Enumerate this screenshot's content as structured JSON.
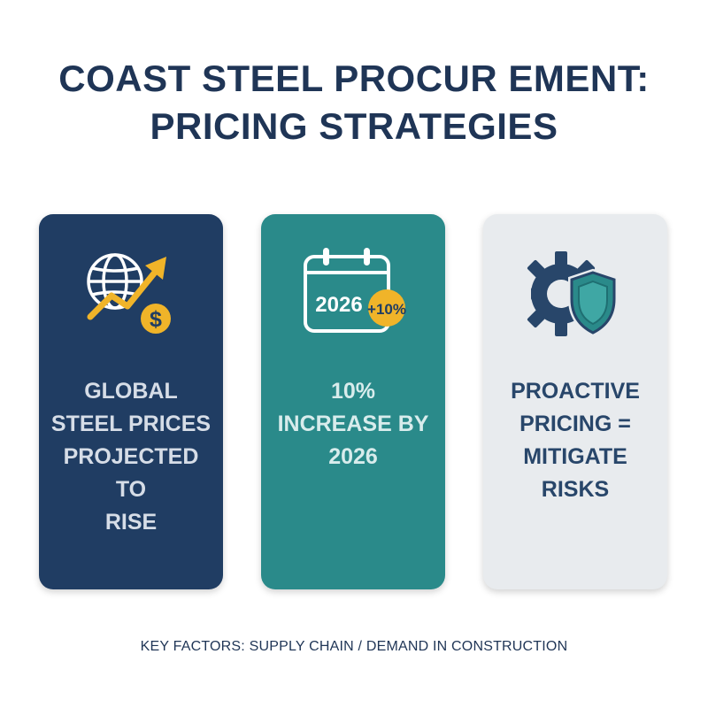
{
  "title": {
    "line1": "COAST STEEL PROCUR EMENT:",
    "line2": "PRICING STRATEGIES"
  },
  "cards": [
    {
      "icon": "globe-trend-dollar-icon",
      "lines": [
        "GLOBAL",
        "STEEL PRICES",
        "PROJECTED TO",
        "RISE"
      ],
      "icon_text": "$"
    },
    {
      "icon": "calendar-increase-icon",
      "lines": [
        "10%",
        "INCREASE BY",
        "2026"
      ],
      "icon_text": "2026",
      "badge_text": "+10%"
    },
    {
      "icon": "gear-shield-icon",
      "lines": [
        "PROACTIVE",
        "PRICING =",
        "MITIGATE RISKS"
      ]
    }
  ],
  "footer": "KEY FACTORS: SUPPLY CHAIN / DEMAND IN CONSTRUCTION",
  "colors": {
    "navy": "#203d63",
    "teal": "#2a8a8a",
    "light_gray": "#e8ebee",
    "gold": "#f0b429",
    "title": "#1f3556"
  }
}
